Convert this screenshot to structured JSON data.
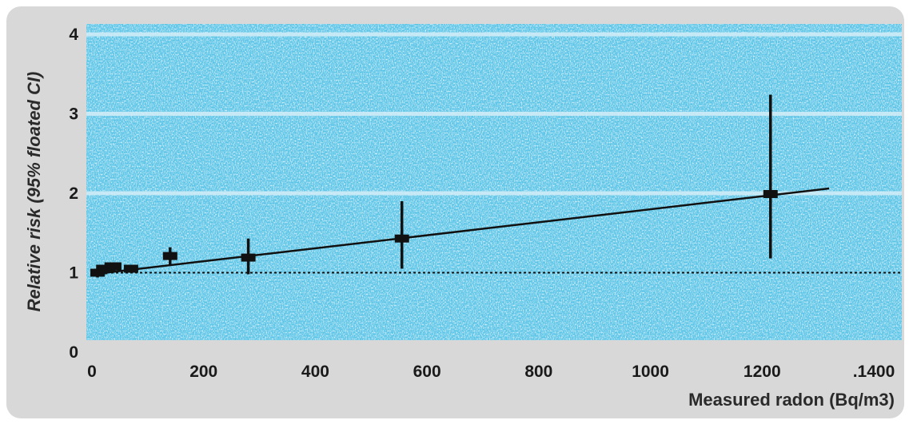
{
  "chart_data": {
    "type": "scatter",
    "title": "",
    "xlabel": "Measured radon (Bq/m3)",
    "ylabel": "Relative risk (95% floated CI)",
    "xlim": [
      0,
      1400
    ],
    "ylim": [
      0,
      4
    ],
    "x_ticks": [
      "0",
      "200",
      "400",
      "600",
      "800",
      "1000",
      "1200",
      ".1400"
    ],
    "x_tick_values": [
      0,
      200,
      400,
      600,
      800,
      1000,
      1200,
      1400
    ],
    "y_ticks": [
      "0",
      "1",
      "2",
      "3",
      "4"
    ],
    "y_tick_values": [
      0,
      1,
      2,
      3,
      4
    ],
    "grid": "horizontal",
    "points": [
      {
        "x": 10,
        "y": 1.0,
        "lo": 0.94,
        "hi": 1.1
      },
      {
        "x": 25,
        "y": 1.05,
        "lo": 0.98,
        "hi": 1.13
      },
      {
        "x": 40,
        "y": 1.08,
        "lo": 1.02,
        "hi": 1.13
      },
      {
        "x": 70,
        "y": 1.05,
        "lo": 1.02,
        "hi": 1.08
      },
      {
        "x": 140,
        "y": 1.21,
        "lo": 1.1,
        "hi": 1.32
      },
      {
        "x": 280,
        "y": 1.19,
        "lo": 0.98,
        "hi": 1.43
      },
      {
        "x": 555,
        "y": 1.43,
        "lo": 1.05,
        "hi": 1.9
      },
      {
        "x": 1215,
        "y": 1.99,
        "lo": 1.18,
        "hi": 3.24
      }
    ],
    "trend_line": {
      "x": [
        0,
        1320
      ],
      "y": [
        0.98,
        2.06
      ]
    },
    "reference_line": {
      "y": 1.0,
      "style": "dotted"
    },
    "colors": {
      "plot_background": "#5bc4e6",
      "frame_background": "#d8d8d8",
      "marks": "#111111"
    }
  }
}
